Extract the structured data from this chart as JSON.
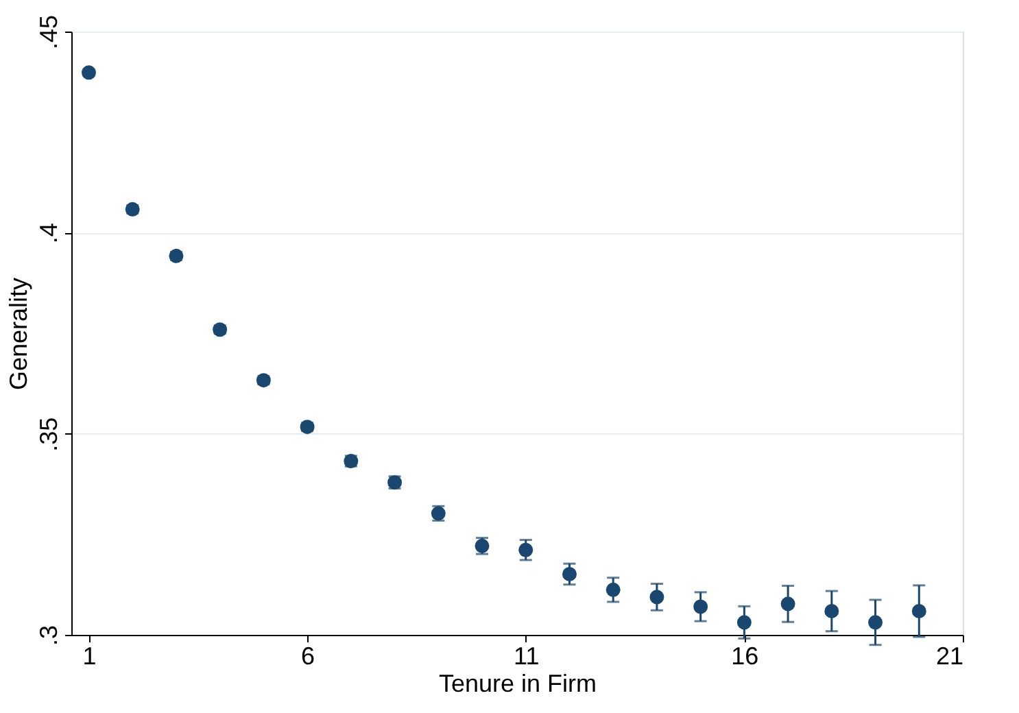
{
  "chart_data": {
    "type": "scatter",
    "xlabel": "Tenure in Firm",
    "ylabel": "Generality",
    "x": [
      1,
      2,
      3,
      4,
      5,
      6,
      7,
      8,
      9,
      10,
      11,
      12,
      13,
      14,
      15,
      16,
      17,
      18,
      19,
      20
    ],
    "series": [
      {
        "color": "#1a476f",
        "values": [
          0.4398,
          0.4058,
          0.3942,
          0.3759,
          0.3633,
          0.3517,
          0.3432,
          0.3379,
          0.3302,
          0.3221,
          0.3211,
          0.3151,
          0.3112,
          0.3094,
          0.307,
          0.3031,
          0.3077,
          0.3059,
          0.3031,
          0.3059
        ],
        "errors": [
          0.0008,
          0.001,
          0.001,
          0.001,
          0.001,
          0.001,
          0.0013,
          0.0015,
          0.0018,
          0.002,
          0.0025,
          0.0026,
          0.003,
          0.0033,
          0.0036,
          0.004,
          0.0045,
          0.005,
          0.0056,
          0.0064
        ]
      }
    ],
    "xlim": [
      0.6,
      21
    ],
    "xticks": [
      1,
      6,
      11,
      16,
      21
    ],
    "ylim": [
      0.3,
      0.45
    ],
    "yticks": [
      {
        "value": 0.3,
        "label": ".3"
      },
      {
        "value": 0.35,
        "label": ".35"
      },
      {
        "value": 0.4,
        "label": ".4"
      },
      {
        "value": 0.45,
        "label": ".45"
      }
    ],
    "grid": "y",
    "marker": "circle"
  }
}
